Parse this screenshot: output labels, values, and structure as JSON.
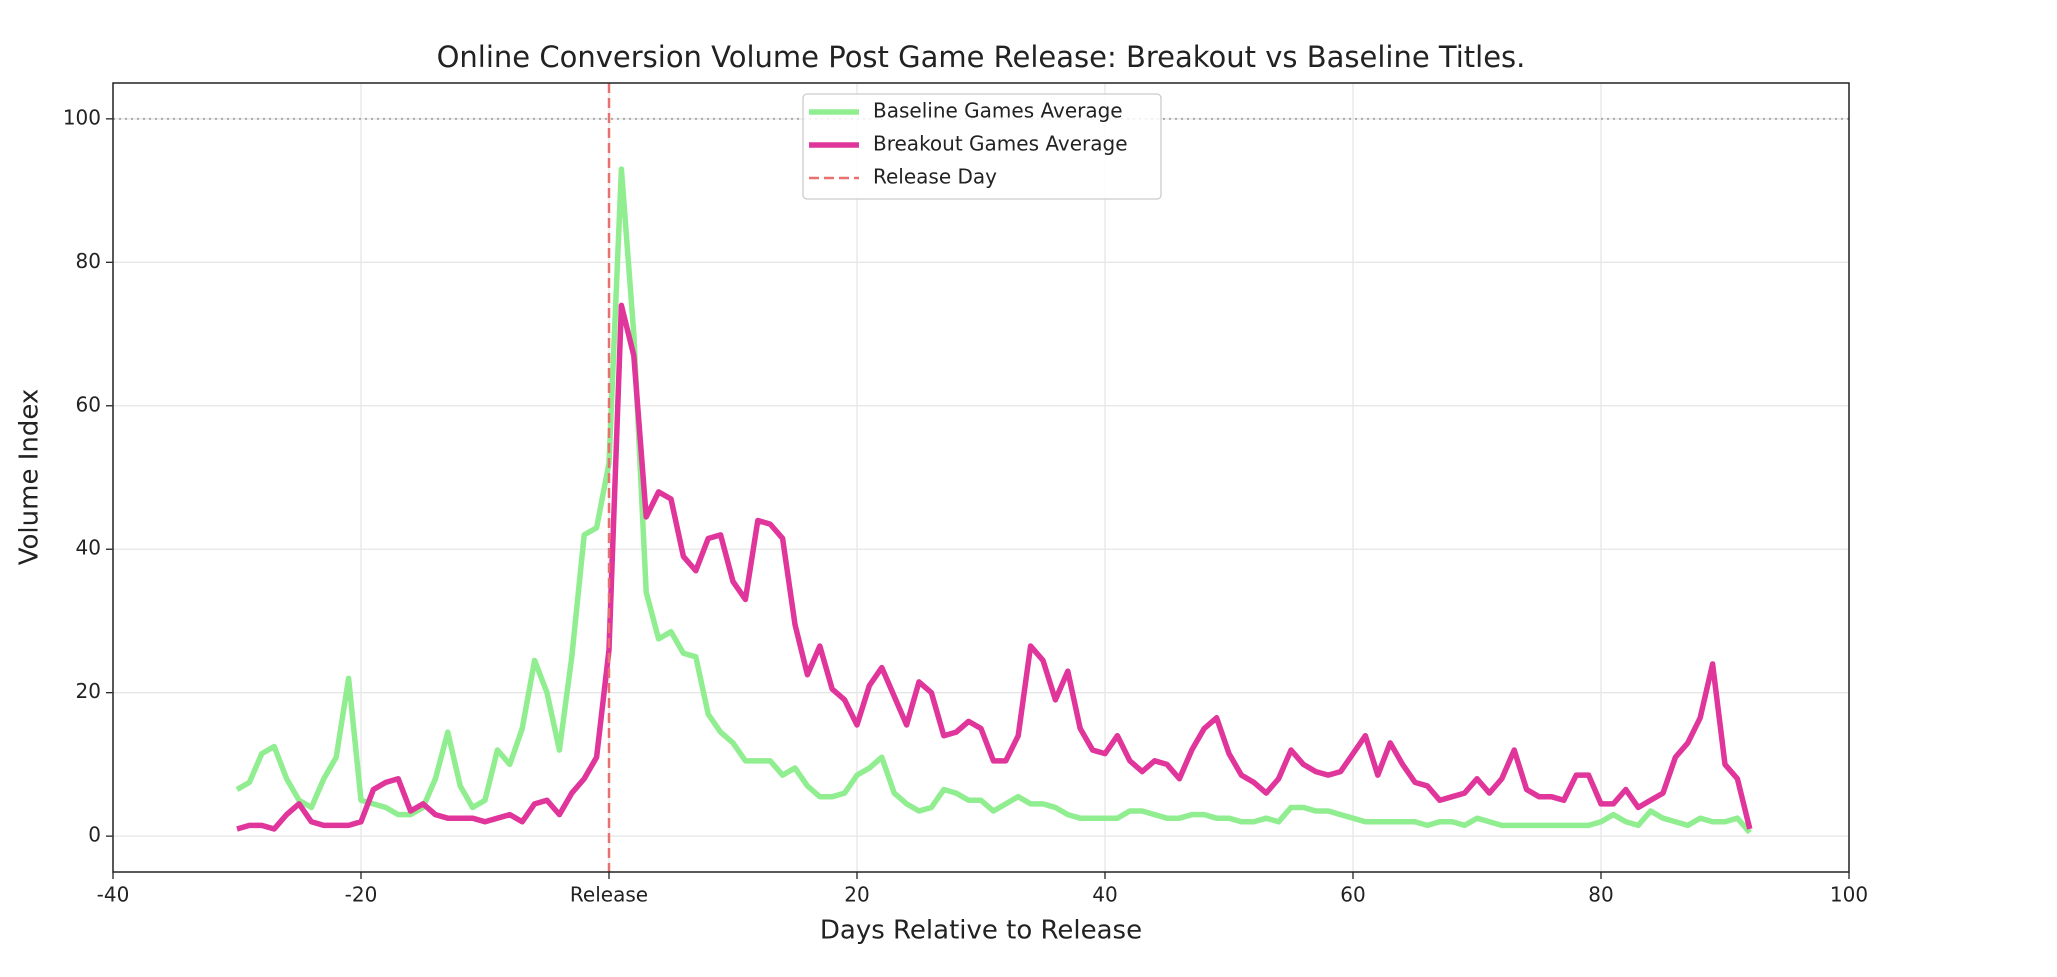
{
  "chart_data": {
    "type": "line",
    "title": "Online Conversion Volume Post Game Release: Breakout vs Baseline Titles.",
    "xlabel": "Days Relative to Release",
    "ylabel": "Volume Index",
    "xlim": [
      -40,
      100
    ],
    "ylim": [
      -5,
      105
    ],
    "xticks": [
      -40,
      -20,
      {
        "value": 0,
        "label": "Release"
      },
      20,
      40,
      60,
      80,
      100
    ],
    "yticks": [
      0,
      20,
      40,
      60,
      80,
      100
    ],
    "grid": true,
    "hline": 100,
    "vline": {
      "name": "Release Day",
      "x": 0,
      "color": "#e8706e"
    },
    "legend": "upper center",
    "x": [
      -30,
      -29,
      -28,
      -27,
      -26,
      -25,
      -24,
      -23,
      -22,
      -21,
      -20,
      -19,
      -18,
      -17,
      -16,
      -15,
      -14,
      -13,
      -12,
      -11,
      -10,
      -9,
      -8,
      -7,
      -6,
      -5,
      -4,
      -3,
      -2,
      -1,
      0,
      1,
      2,
      3,
      4,
      5,
      6,
      7,
      8,
      9,
      10,
      11,
      12,
      13,
      14,
      15,
      16,
      17,
      18,
      19,
      20,
      21,
      22,
      23,
      24,
      25,
      26,
      27,
      28,
      29,
      30,
      31,
      32,
      33,
      34,
      35,
      36,
      37,
      38,
      39,
      40,
      41,
      42,
      43,
      44,
      45,
      46,
      47,
      48,
      49,
      50,
      51,
      52,
      53,
      54,
      55,
      56,
      57,
      58,
      59,
      60,
      61,
      62,
      63,
      64,
      65,
      66,
      67,
      68,
      69,
      70,
      71,
      72,
      73,
      74,
      75,
      76,
      77,
      78,
      79,
      80,
      81,
      82,
      83,
      84,
      85,
      86,
      87,
      88,
      89,
      90,
      91,
      92
    ],
    "series": [
      {
        "name": "Baseline Games Average",
        "color": "#90ee90",
        "values": [
          6.5,
          7.5,
          11.5,
          12.5,
          8,
          5,
          4,
          8,
          11,
          22,
          5,
          4.5,
          4,
          3,
          3,
          4,
          8,
          14.5,
          7,
          4,
          5,
          12,
          10,
          15,
          24.5,
          20,
          12,
          25,
          42,
          43,
          52,
          93,
          70,
          34,
          27.5,
          28.5,
          25.5,
          25,
          17,
          14.5,
          13,
          10.5,
          10.5,
          10.5,
          8.5,
          9.5,
          7,
          5.5,
          5.5,
          6,
          8.5,
          9.5,
          11,
          6,
          4.5,
          3.5,
          4,
          6.5,
          6,
          5,
          5,
          3.5,
          4.5,
          5.5,
          4.5,
          4.5,
          4,
          3,
          2.5,
          2.5,
          2.5,
          2.5,
          3.5,
          3.5,
          3,
          2.5,
          2.5,
          3,
          3,
          2.5,
          2.5,
          2,
          2,
          2.5,
          2,
          4,
          4,
          3.5,
          3.5,
          3,
          2.5,
          2,
          2,
          2,
          2,
          2,
          1.5,
          2,
          2,
          1.5,
          2.5,
          2,
          1.5,
          1.5,
          1.5,
          1.5,
          1.5,
          1.5,
          1.5,
          1.5,
          2,
          3,
          2,
          1.5,
          3.5,
          2.5,
          2,
          1.5,
          2.5,
          2,
          2,
          2.5,
          0.5
        ]
      },
      {
        "name": "Breakout Games Average",
        "color": "#e0359a",
        "values": [
          1,
          1.5,
          1.5,
          1,
          3,
          4.5,
          2,
          1.5,
          1.5,
          1.5,
          2,
          6.5,
          7.5,
          8,
          3.5,
          4.5,
          3,
          2.5,
          2.5,
          2.5,
          2,
          2.5,
          3,
          2,
          4.5,
          5,
          3,
          6,
          8,
          11,
          26,
          74,
          67,
          44.5,
          48,
          47,
          39,
          37,
          41.5,
          42,
          35.5,
          33,
          44,
          43.5,
          41.5,
          29.5,
          22.5,
          26.5,
          20.5,
          19,
          15.5,
          21,
          23.5,
          19.5,
          15.5,
          21.5,
          20,
          14,
          14.5,
          16,
          15,
          10.5,
          10.5,
          14,
          26.5,
          24.5,
          19,
          23,
          15,
          12,
          11.5,
          14,
          10.5,
          9,
          10.5,
          10,
          8,
          12,
          15,
          16.5,
          11.5,
          8.5,
          7.5,
          6,
          8,
          12,
          10,
          9,
          8.5,
          9,
          11.5,
          14,
          8.5,
          13,
          10,
          7.5,
          7,
          5,
          5.5,
          6,
          8,
          6,
          8,
          12,
          6.5,
          5.5,
          5.5,
          5,
          8.5,
          8.5,
          4.5,
          4.5,
          6.5,
          4,
          5,
          6,
          11,
          13,
          16.5,
          24,
          10,
          8,
          1
        ]
      }
    ]
  }
}
